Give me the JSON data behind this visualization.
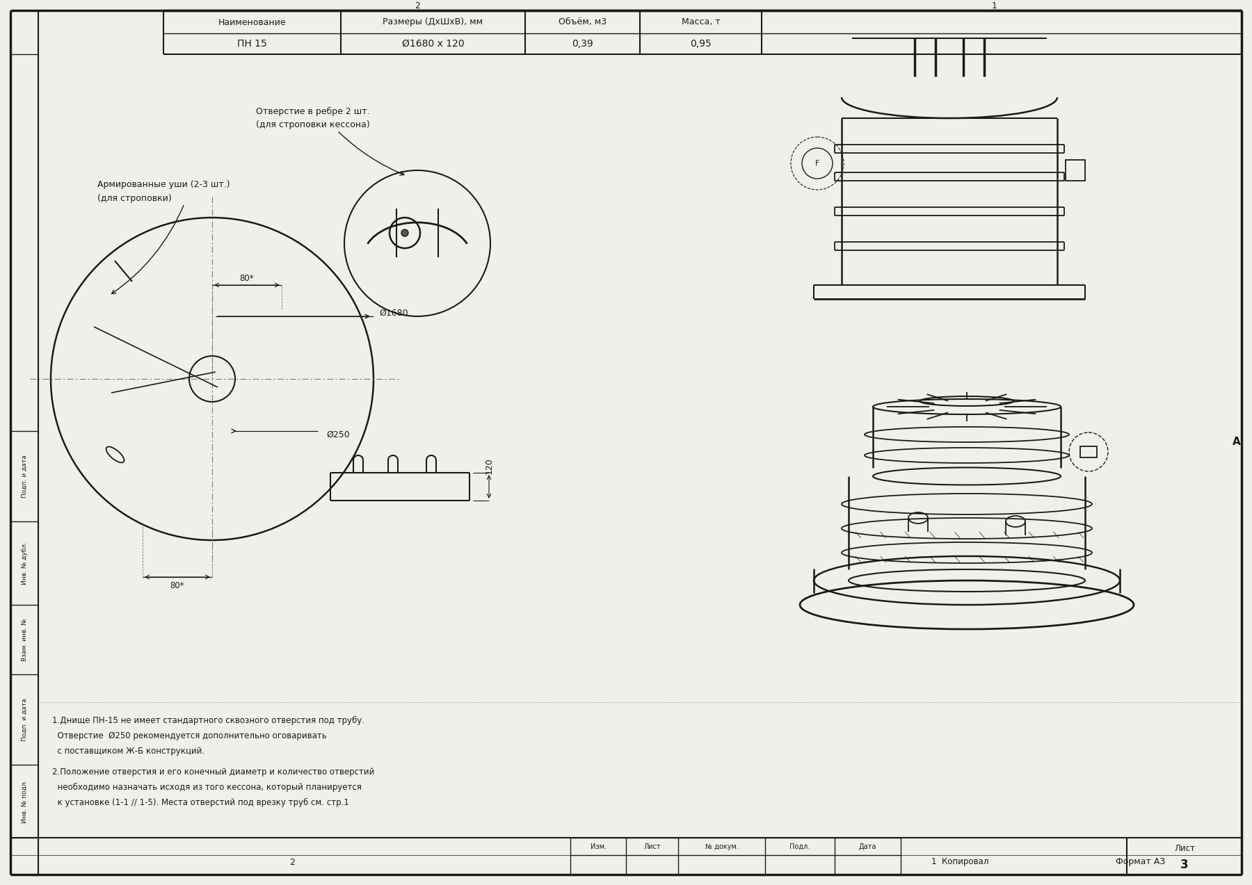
{
  "bg_color": "#f0f0eb",
  "line_color": "#1a1a1a",
  "table_headers": [
    "Наименование",
    "Размеры (ДхШхВ), мм",
    "Объём, м3",
    "Масса, т"
  ],
  "table_row": [
    "ПН 15",
    "Ø1680 х 120",
    "0,39",
    "0,95"
  ],
  "label_phi1680": "Ø1680",
  "label_phi250": "Ø250",
  "label_80star": "80*",
  "label_120": "120",
  "note1_line1": "1.Днище ПН-15 не имеет стандартного сквозного отверстия под трубу.",
  "note1_line2": "  Отверстие  Ø250 рекомендуется дополнительно оговаривать",
  "note1_line3": "  с поставщиком Ж-Б конструкций.",
  "note2_line1": "2.Положение отверстия и его конечный диаметр и количество отверстий",
  "note2_line2": "  необходимо назначать исходя из того кессона, который планируется",
  "note2_line3": "  к установке (1-1 // 1-5). Места отверстий под врезку труб см. стр.1",
  "stamp_cols": [
    "Изм.",
    "Лист",
    "№ докум.",
    "Подл.",
    "Дата"
  ],
  "bottom_2": "2",
  "bottom_1_kopiroval": "1  Копировал",
  "bottom_format": "Формат А3",
  "sheet_label": "Лист",
  "sheet_number": "3",
  "col_A_label": "А",
  "ann_holes_line1": "Отверстие в ребре 2 шт.",
  "ann_holes_line2": "(для строповки кессона)",
  "ann_ears_line1": "Армированные уши (2-3 шт.)",
  "ann_ears_line2": "(для строповки)",
  "left_stamps": [
    "Инв. № подл.",
    "Подп. и дата",
    "Взам. инв. №",
    "Инв. № дубл.",
    "Подп. и дата"
  ],
  "num_top_2": "2",
  "num_top_1": "1"
}
